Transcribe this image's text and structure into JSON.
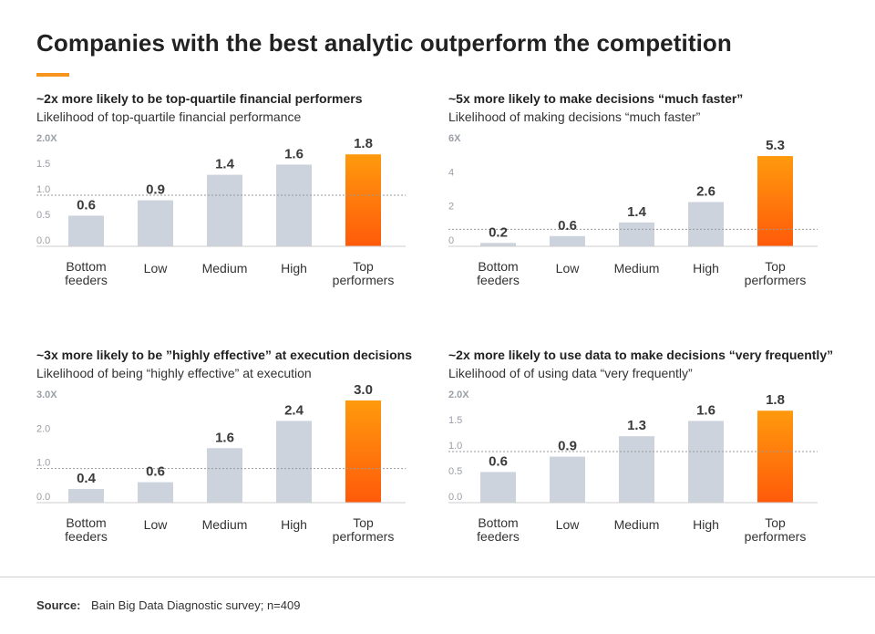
{
  "title": "Companies with the best analytic outperform the competition",
  "colors": {
    "accent": "#f7941d",
    "bar": "#cdd3dc",
    "highlight_top": "#ff9a0d",
    "highlight_bottom": "#ff5a0a",
    "reference_line": "#999999",
    "axis": "#cccccc"
  },
  "chart_data": [
    {
      "type": "bar",
      "heading": "~2x more likely to be top-quartile financial performers",
      "title": "Likelihood of top-quartile financial performance",
      "categories": [
        [
          "Bottom",
          "feeders"
        ],
        [
          "Low"
        ],
        [
          "Medium"
        ],
        [
          "High"
        ],
        [
          "Top",
          "performers"
        ]
      ],
      "values": [
        0.6,
        0.9,
        1.4,
        1.6,
        1.8
      ],
      "value_labels": [
        "0.6",
        "0.9",
        "1.4",
        "1.6",
        "1.8"
      ],
      "highlight_index": 4,
      "yticks": [
        0.0,
        0.5,
        1.0,
        1.5,
        2.0
      ],
      "ytick_labels": [
        "0.0",
        "0.5",
        "1.0",
        "1.5",
        "2.0X"
      ],
      "ylim": [
        0,
        2.0
      ],
      "reference_line": 1.0
    },
    {
      "type": "bar",
      "heading": "~5x more likely to make decisions “much faster”",
      "title": "Likelihood of making decisions “much faster”",
      "categories": [
        [
          "Bottom",
          "feeders"
        ],
        [
          "Low"
        ],
        [
          "Medium"
        ],
        [
          "High"
        ],
        [
          "Top",
          "performers"
        ]
      ],
      "values": [
        0.2,
        0.6,
        1.4,
        2.6,
        5.3
      ],
      "value_labels": [
        "0.2",
        "0.6",
        "1.4",
        "2.6",
        "5.3"
      ],
      "highlight_index": 4,
      "yticks": [
        0,
        2,
        4,
        6
      ],
      "ytick_labels": [
        "0",
        "2",
        "4",
        "6X"
      ],
      "ylim": [
        0,
        6
      ],
      "reference_line": 1.0
    },
    {
      "type": "bar",
      "heading": "~3x more likely to be ”highly effective” at execution decisions",
      "title": "Likelihood of being “highly effective” at execution",
      "categories": [
        [
          "Bottom",
          "feeders"
        ],
        [
          "Low"
        ],
        [
          "Medium"
        ],
        [
          "High"
        ],
        [
          "Top",
          "performers"
        ]
      ],
      "values": [
        0.4,
        0.6,
        1.6,
        2.4,
        3.0
      ],
      "value_labels": [
        "0.4",
        "0.6",
        "1.6",
        "2.4",
        "3.0"
      ],
      "highlight_index": 4,
      "yticks": [
        0.0,
        1.0,
        2.0,
        3.0
      ],
      "ytick_labels": [
        "0.0",
        "1.0",
        "2.0",
        "3.0X"
      ],
      "ylim": [
        0,
        3.0
      ],
      "reference_line": 1.0
    },
    {
      "type": "bar",
      "heading": "~2x more likely to use data to make decisions “very frequently”",
      "title": "Likelihood of of using data “very frequently”",
      "categories": [
        [
          "Bottom",
          "feeders"
        ],
        [
          "Low"
        ],
        [
          "Medium"
        ],
        [
          "High"
        ],
        [
          "Top",
          "performers"
        ]
      ],
      "values": [
        0.6,
        0.9,
        1.3,
        1.6,
        1.8
      ],
      "value_labels": [
        "0.6",
        "0.9",
        "1.3",
        "1.6",
        "1.8"
      ],
      "highlight_index": 4,
      "yticks": [
        0.0,
        0.5,
        1.0,
        1.5,
        2.0
      ],
      "ytick_labels": [
        "0.0",
        "0.5",
        "1.0",
        "1.5",
        "2.0X"
      ],
      "ylim": [
        0,
        2.0
      ],
      "reference_line": 1.0
    }
  ],
  "footer": {
    "source_label": "Source:",
    "source_text": "Bain Big Data Diagnostic survey; n=409"
  }
}
